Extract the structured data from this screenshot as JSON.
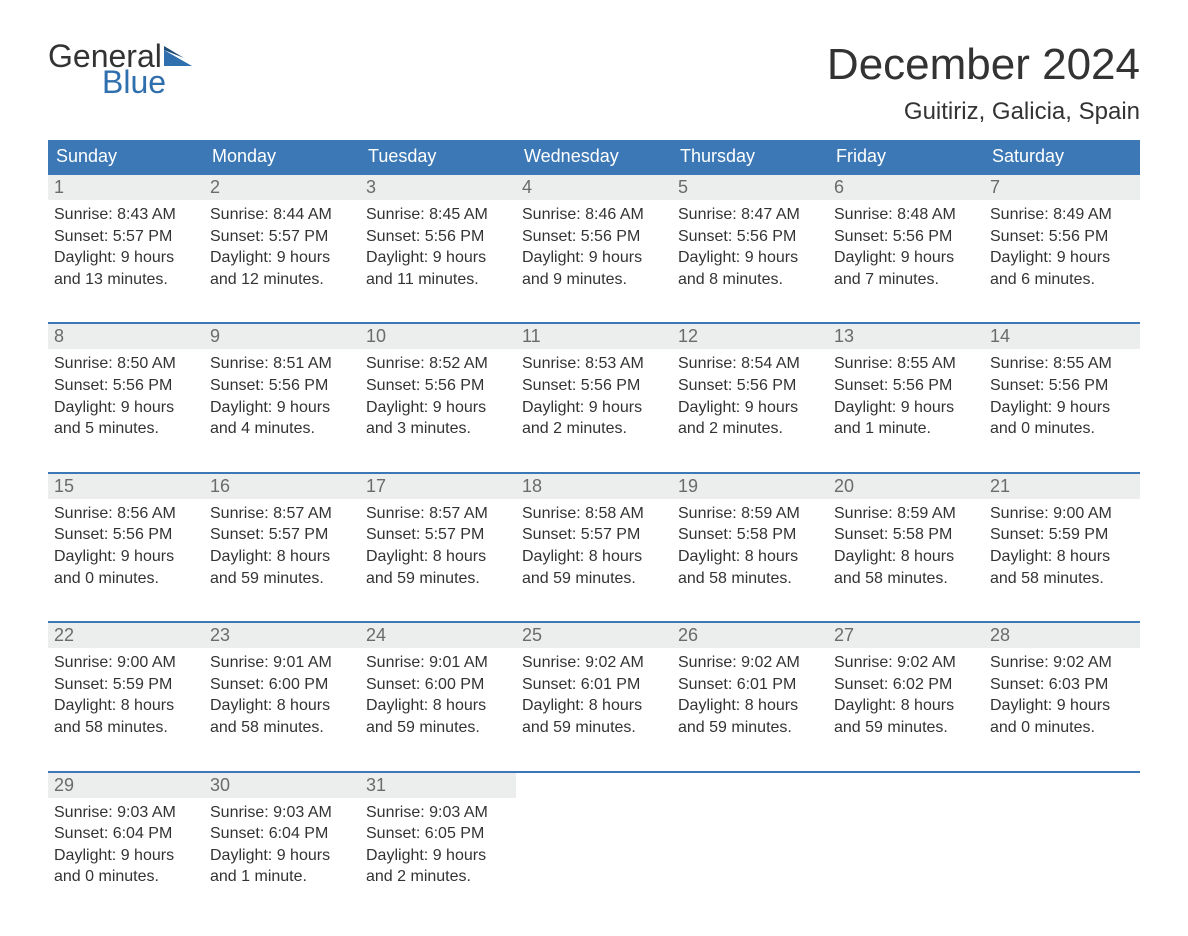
{
  "logo": {
    "word1": "General",
    "word2": "Blue"
  },
  "title": "December 2024",
  "location": "Guitiriz, Galicia, Spain",
  "colors": {
    "header_bg": "#3b78b5",
    "header_text": "#ffffff",
    "rule": "#3b78b5",
    "daynum_bg": "#eceded",
    "daynum_text": "#6b6b6b",
    "body_text": "#333333",
    "logo_blue": "#2f6fad",
    "background": "#ffffff"
  },
  "typography": {
    "title_fontsize": 44,
    "location_fontsize": 24,
    "dow_fontsize": 18,
    "daynum_fontsize": 18,
    "body_fontsize": 16,
    "logo_fontsize": 32
  },
  "days_of_week": [
    "Sunday",
    "Monday",
    "Tuesday",
    "Wednesday",
    "Thursday",
    "Friday",
    "Saturday"
  ],
  "weeks": [
    [
      {
        "n": "1",
        "sunrise": "Sunrise: 8:43 AM",
        "sunset": "Sunset: 5:57 PM",
        "d1": "Daylight: 9 hours",
        "d2": "and 13 minutes."
      },
      {
        "n": "2",
        "sunrise": "Sunrise: 8:44 AM",
        "sunset": "Sunset: 5:57 PM",
        "d1": "Daylight: 9 hours",
        "d2": "and 12 minutes."
      },
      {
        "n": "3",
        "sunrise": "Sunrise: 8:45 AM",
        "sunset": "Sunset: 5:56 PM",
        "d1": "Daylight: 9 hours",
        "d2": "and 11 minutes."
      },
      {
        "n": "4",
        "sunrise": "Sunrise: 8:46 AM",
        "sunset": "Sunset: 5:56 PM",
        "d1": "Daylight: 9 hours",
        "d2": "and 9 minutes."
      },
      {
        "n": "5",
        "sunrise": "Sunrise: 8:47 AM",
        "sunset": "Sunset: 5:56 PM",
        "d1": "Daylight: 9 hours",
        "d2": "and 8 minutes."
      },
      {
        "n": "6",
        "sunrise": "Sunrise: 8:48 AM",
        "sunset": "Sunset: 5:56 PM",
        "d1": "Daylight: 9 hours",
        "d2": "and 7 minutes."
      },
      {
        "n": "7",
        "sunrise": "Sunrise: 8:49 AM",
        "sunset": "Sunset: 5:56 PM",
        "d1": "Daylight: 9 hours",
        "d2": "and 6 minutes."
      }
    ],
    [
      {
        "n": "8",
        "sunrise": "Sunrise: 8:50 AM",
        "sunset": "Sunset: 5:56 PM",
        "d1": "Daylight: 9 hours",
        "d2": "and 5 minutes."
      },
      {
        "n": "9",
        "sunrise": "Sunrise: 8:51 AM",
        "sunset": "Sunset: 5:56 PM",
        "d1": "Daylight: 9 hours",
        "d2": "and 4 minutes."
      },
      {
        "n": "10",
        "sunrise": "Sunrise: 8:52 AM",
        "sunset": "Sunset: 5:56 PM",
        "d1": "Daylight: 9 hours",
        "d2": "and 3 minutes."
      },
      {
        "n": "11",
        "sunrise": "Sunrise: 8:53 AM",
        "sunset": "Sunset: 5:56 PM",
        "d1": "Daylight: 9 hours",
        "d2": "and 2 minutes."
      },
      {
        "n": "12",
        "sunrise": "Sunrise: 8:54 AM",
        "sunset": "Sunset: 5:56 PM",
        "d1": "Daylight: 9 hours",
        "d2": "and 2 minutes."
      },
      {
        "n": "13",
        "sunrise": "Sunrise: 8:55 AM",
        "sunset": "Sunset: 5:56 PM",
        "d1": "Daylight: 9 hours",
        "d2": "and 1 minute."
      },
      {
        "n": "14",
        "sunrise": "Sunrise: 8:55 AM",
        "sunset": "Sunset: 5:56 PM",
        "d1": "Daylight: 9 hours",
        "d2": "and 0 minutes."
      }
    ],
    [
      {
        "n": "15",
        "sunrise": "Sunrise: 8:56 AM",
        "sunset": "Sunset: 5:56 PM",
        "d1": "Daylight: 9 hours",
        "d2": "and 0 minutes."
      },
      {
        "n": "16",
        "sunrise": "Sunrise: 8:57 AM",
        "sunset": "Sunset: 5:57 PM",
        "d1": "Daylight: 8 hours",
        "d2": "and 59 minutes."
      },
      {
        "n": "17",
        "sunrise": "Sunrise: 8:57 AM",
        "sunset": "Sunset: 5:57 PM",
        "d1": "Daylight: 8 hours",
        "d2": "and 59 minutes."
      },
      {
        "n": "18",
        "sunrise": "Sunrise: 8:58 AM",
        "sunset": "Sunset: 5:57 PM",
        "d1": "Daylight: 8 hours",
        "d2": "and 59 minutes."
      },
      {
        "n": "19",
        "sunrise": "Sunrise: 8:59 AM",
        "sunset": "Sunset: 5:58 PM",
        "d1": "Daylight: 8 hours",
        "d2": "and 58 minutes."
      },
      {
        "n": "20",
        "sunrise": "Sunrise: 8:59 AM",
        "sunset": "Sunset: 5:58 PM",
        "d1": "Daylight: 8 hours",
        "d2": "and 58 minutes."
      },
      {
        "n": "21",
        "sunrise": "Sunrise: 9:00 AM",
        "sunset": "Sunset: 5:59 PM",
        "d1": "Daylight: 8 hours",
        "d2": "and 58 minutes."
      }
    ],
    [
      {
        "n": "22",
        "sunrise": "Sunrise: 9:00 AM",
        "sunset": "Sunset: 5:59 PM",
        "d1": "Daylight: 8 hours",
        "d2": "and 58 minutes."
      },
      {
        "n": "23",
        "sunrise": "Sunrise: 9:01 AM",
        "sunset": "Sunset: 6:00 PM",
        "d1": "Daylight: 8 hours",
        "d2": "and 58 minutes."
      },
      {
        "n": "24",
        "sunrise": "Sunrise: 9:01 AM",
        "sunset": "Sunset: 6:00 PM",
        "d1": "Daylight: 8 hours",
        "d2": "and 59 minutes."
      },
      {
        "n": "25",
        "sunrise": "Sunrise: 9:02 AM",
        "sunset": "Sunset: 6:01 PM",
        "d1": "Daylight: 8 hours",
        "d2": "and 59 minutes."
      },
      {
        "n": "26",
        "sunrise": "Sunrise: 9:02 AM",
        "sunset": "Sunset: 6:01 PM",
        "d1": "Daylight: 8 hours",
        "d2": "and 59 minutes."
      },
      {
        "n": "27",
        "sunrise": "Sunrise: 9:02 AM",
        "sunset": "Sunset: 6:02 PM",
        "d1": "Daylight: 8 hours",
        "d2": "and 59 minutes."
      },
      {
        "n": "28",
        "sunrise": "Sunrise: 9:02 AM",
        "sunset": "Sunset: 6:03 PM",
        "d1": "Daylight: 9 hours",
        "d2": "and 0 minutes."
      }
    ],
    [
      {
        "n": "29",
        "sunrise": "Sunrise: 9:03 AM",
        "sunset": "Sunset: 6:04 PM",
        "d1": "Daylight: 9 hours",
        "d2": "and 0 minutes."
      },
      {
        "n": "30",
        "sunrise": "Sunrise: 9:03 AM",
        "sunset": "Sunset: 6:04 PM",
        "d1": "Daylight: 9 hours",
        "d2": "and 1 minute."
      },
      {
        "n": "31",
        "sunrise": "Sunrise: 9:03 AM",
        "sunset": "Sunset: 6:05 PM",
        "d1": "Daylight: 9 hours",
        "d2": "and 2 minutes."
      },
      null,
      null,
      null,
      null
    ]
  ]
}
